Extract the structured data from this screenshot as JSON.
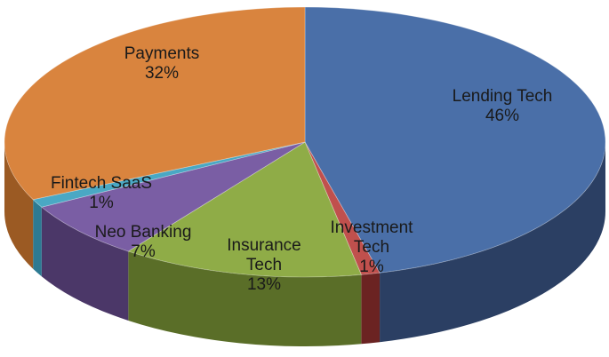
{
  "chart_data": {
    "type": "pie",
    "style": "3d",
    "slices": [
      {
        "key": "lending",
        "label_lines": [
          "Lending Tech"
        ],
        "pct_label": "46%",
        "value": 46,
        "top": "#4a6fa8",
        "side": "#2b3f63"
      },
      {
        "key": "investment",
        "label_lines": [
          "Investment",
          "Tech"
        ],
        "pct_label": "1%",
        "value": 1,
        "top": "#c0504d",
        "side": "#6b2322"
      },
      {
        "key": "insurance",
        "label_lines": [
          "Insurance",
          "Tech"
        ],
        "pct_label": "13%",
        "value": 13,
        "top": "#8fac47",
        "side": "#5a6e28"
      },
      {
        "key": "neobanking",
        "label_lines": [
          "Neo Banking"
        ],
        "pct_label": "7%",
        "value": 7,
        "top": "#7a5ea4",
        "side": "#4b3768"
      },
      {
        "key": "saas",
        "label_lines": [
          "Fintech SaaS"
        ],
        "pct_label": "1%",
        "value": 1,
        "top": "#4aa8c4",
        "side": "#2d7a92"
      },
      {
        "key": "payments",
        "label_lines": [
          "Payments"
        ],
        "pct_label": "32%",
        "value": 32,
        "top": "#d9843e",
        "side": "#9b5a23"
      }
    ]
  }
}
